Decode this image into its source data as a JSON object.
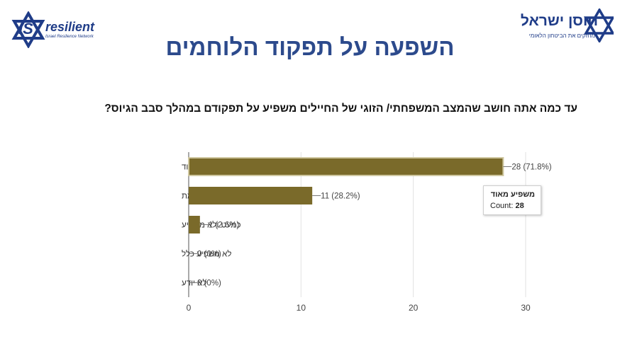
{
  "header": {
    "logo_left": {
      "mark": "IS",
      "name": "resilient",
      "subtitle": "Israel Resilience Network"
    },
    "logo_right": {
      "name": "חוסן ישראל",
      "subtitle": "מחזקים את הביטחון הלאומי"
    },
    "title": "השפעה על תפקוד הלוחמים"
  },
  "question": "עד כמה אתה חושב שהמצב המשפחתי/ הזוגי של החיילים משפיע על תפקודם במהלך סבב הגיוס?",
  "chart_data": {
    "type": "bar",
    "orientation": "horizontal",
    "categories": [
      "משפיע מאוד",
      "משפיע במידה מסוימת",
      "כמעט ולא משפיע",
      "לא משפיע כלל",
      "לא יודע"
    ],
    "values": [
      28,
      11,
      1,
      0,
      0
    ],
    "data_labels": [
      "28 (71.8%)",
      "11 (28.2%)",
      "1 (2.6%)",
      "0 (0%)",
      "0 (0%)"
    ],
    "xlim": [
      0,
      30
    ],
    "x_ticks": [
      0,
      10,
      20,
      30
    ],
    "grid": true,
    "bar_color": "#7a6a2a",
    "tooltip": {
      "title": "משפיע מאוד",
      "label": "Count:",
      "value": "28"
    }
  }
}
